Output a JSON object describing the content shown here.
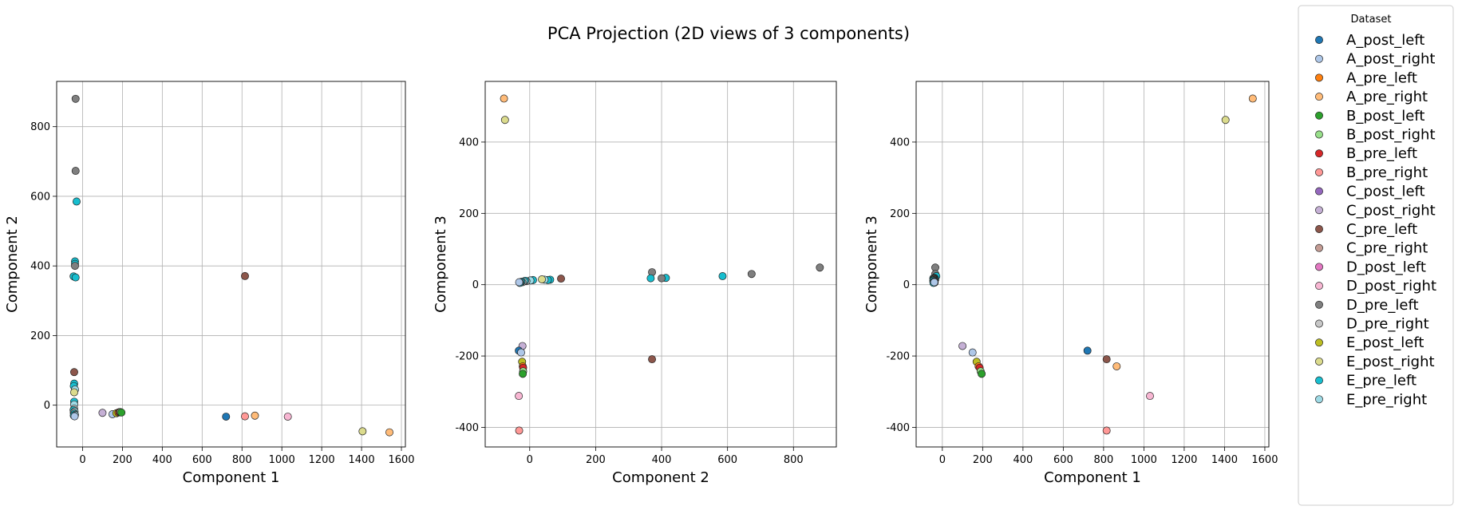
{
  "figure": {
    "suptitle": "PCA Projection (2D views of 3 components)"
  },
  "legend": {
    "title": "Dataset",
    "placement": "outside-right",
    "entries": [
      {
        "label": "A_post_left",
        "color": "#1f77b4"
      },
      {
        "label": "A_post_right",
        "color": "#aec7e8"
      },
      {
        "label": "A_pre_left",
        "color": "#ff7f0e"
      },
      {
        "label": "A_pre_right",
        "color": "#ffbb78"
      },
      {
        "label": "B_post_left",
        "color": "#2ca02c"
      },
      {
        "label": "B_post_right",
        "color": "#98df8a"
      },
      {
        "label": "B_pre_left",
        "color": "#d62728"
      },
      {
        "label": "B_pre_right",
        "color": "#ff9896"
      },
      {
        "label": "C_post_left",
        "color": "#9467bd"
      },
      {
        "label": "C_post_right",
        "color": "#c5b0d5"
      },
      {
        "label": "C_pre_left",
        "color": "#8c564b"
      },
      {
        "label": "C_pre_right",
        "color": "#c49c94"
      },
      {
        "label": "D_post_left",
        "color": "#e377c2"
      },
      {
        "label": "D_post_right",
        "color": "#f7b6d2"
      },
      {
        "label": "D_pre_left",
        "color": "#7f7f7f"
      },
      {
        "label": "D_pre_right",
        "color": "#c7c7c7"
      },
      {
        "label": "E_post_left",
        "color": "#bcbd22"
      },
      {
        "label": "E_post_right",
        "color": "#dbdb8d"
      },
      {
        "label": "E_pre_left",
        "color": "#17becf"
      },
      {
        "label": "E_pre_right",
        "color": "#9edae5"
      }
    ]
  },
  "chart_data": [
    {
      "type": "scatter",
      "xlabel": "Component 1",
      "ylabel": "Component 2",
      "xlim": [
        -130,
        1620
      ],
      "ylim": [
        -120,
        930
      ],
      "xticks": [
        0,
        200,
        400,
        600,
        800,
        1000,
        1200,
        1400,
        1600
      ],
      "yticks": [
        0,
        200,
        400,
        600,
        800
      ],
      "grid": true,
      "points": [
        {
          "series": "C_post_right",
          "x": 100,
          "y": -22
        },
        {
          "series": "A_post_right",
          "x": 150,
          "y": -26
        },
        {
          "series": "E_post_left",
          "x": 170,
          "y": -23
        },
        {
          "series": "A_pre_left",
          "x": 180,
          "y": -21
        },
        {
          "series": "B_pre_left",
          "x": 185,
          "y": -20
        },
        {
          "series": "B_post_right",
          "x": 190,
          "y": -20
        },
        {
          "series": "B_post_left",
          "x": 195,
          "y": -21
        },
        {
          "series": "A_post_left",
          "x": 720,
          "y": -33
        },
        {
          "series": "C_pre_left",
          "x": 815,
          "y": 371
        },
        {
          "series": "B_pre_right",
          "x": 815,
          "y": -32
        },
        {
          "series": "A_pre_right",
          "x": 865,
          "y": -30
        },
        {
          "series": "D_post_right",
          "x": 1030,
          "y": -33
        },
        {
          "series": "E_post_right",
          "x": 1405,
          "y": -75
        },
        {
          "series": "A_pre_right",
          "x": 1540,
          "y": -78
        },
        {
          "series": "D_pre_left",
          "x": -35,
          "y": 880
        },
        {
          "series": "D_pre_left",
          "x": -35,
          "y": 673
        },
        {
          "series": "E_pre_left",
          "x": -30,
          "y": 585
        },
        {
          "series": "E_pre_left",
          "x": -38,
          "y": 413
        },
        {
          "series": "E_pre_left",
          "x": -38,
          "y": 406
        },
        {
          "series": "D_pre_left",
          "x": -38,
          "y": 400
        },
        {
          "series": "E_pre_left",
          "x": -45,
          "y": 370
        },
        {
          "series": "E_pre_left",
          "x": -35,
          "y": 367
        },
        {
          "series": "C_pre_left",
          "x": -42,
          "y": 95
        },
        {
          "series": "E_pre_left",
          "x": -42,
          "y": 62
        },
        {
          "series": "E_pre_left",
          "x": -44,
          "y": 55
        },
        {
          "series": "E_pre_right",
          "x": -38,
          "y": 45
        },
        {
          "series": "E_post_right",
          "x": -42,
          "y": 37
        },
        {
          "series": "E_pre_left",
          "x": -42,
          "y": 10
        },
        {
          "series": "E_pre_right",
          "x": -42,
          "y": 2
        },
        {
          "series": "D_pre_right",
          "x": -42,
          "y": -10
        },
        {
          "series": "E_pre_left",
          "x": -45,
          "y": -14
        },
        {
          "series": "E_pre_right",
          "x": -40,
          "y": -18
        },
        {
          "series": "D_pre_right",
          "x": -44,
          "y": -22
        },
        {
          "series": "E_pre_left",
          "x": -42,
          "y": -25
        },
        {
          "series": "E_pre_right",
          "x": -38,
          "y": -28
        },
        {
          "series": "E_pre_left",
          "x": -44,
          "y": -30
        },
        {
          "series": "A_post_right",
          "x": -40,
          "y": -32
        }
      ]
    },
    {
      "type": "scatter",
      "xlabel": "Component 2",
      "ylabel": "Component 3",
      "xlim": [
        -135,
        930
      ],
      "ylim": [
        -455,
        570
      ],
      "xticks": [
        0,
        200,
        400,
        600,
        800
      ],
      "yticks": [
        -400,
        -200,
        0,
        200,
        400
      ],
      "grid": true,
      "points": [
        {
          "series": "A_pre_right",
          "x": -78,
          "y": 522
        },
        {
          "series": "E_post_right",
          "x": -75,
          "y": 462
        },
        {
          "series": "D_pre_left",
          "x": 880,
          "y": 48
        },
        {
          "series": "D_pre_left",
          "x": 673,
          "y": 30
        },
        {
          "series": "E_pre_left",
          "x": 585,
          "y": 24
        },
        {
          "series": "E_pre_left",
          "x": 413,
          "y": 19
        },
        {
          "series": "D_pre_left",
          "x": 400,
          "y": 18
        },
        {
          "series": "D_pre_left",
          "x": 371,
          "y": 35
        },
        {
          "series": "E_pre_left",
          "x": 367,
          "y": 18
        },
        {
          "series": "C_pre_left",
          "x": 371,
          "y": -209
        },
        {
          "series": "C_pre_left",
          "x": 95,
          "y": 17
        },
        {
          "series": "E_pre_left",
          "x": 62,
          "y": 14
        },
        {
          "series": "E_pre_left",
          "x": 55,
          "y": 13
        },
        {
          "series": "E_pre_right",
          "x": 45,
          "y": 14
        },
        {
          "series": "E_post_right",
          "x": 37,
          "y": 15
        },
        {
          "series": "E_pre_left",
          "x": 10,
          "y": 13
        },
        {
          "series": "E_pre_right",
          "x": 2,
          "y": 12
        },
        {
          "series": "D_pre_right",
          "x": -10,
          "y": 10
        },
        {
          "series": "E_pre_left",
          "x": -14,
          "y": 11
        },
        {
          "series": "E_pre_right",
          "x": -18,
          "y": 9
        },
        {
          "series": "D_pre_right",
          "x": -22,
          "y": 7
        },
        {
          "series": "E_pre_left",
          "x": -25,
          "y": 8
        },
        {
          "series": "E_pre_right",
          "x": -28,
          "y": 6
        },
        {
          "series": "E_pre_left",
          "x": -30,
          "y": 5
        },
        {
          "series": "A_post_right",
          "x": -32,
          "y": 7
        },
        {
          "series": "C_post_right",
          "x": -22,
          "y": -172
        },
        {
          "series": "A_post_left",
          "x": -33,
          "y": -185
        },
        {
          "series": "A_post_right",
          "x": -26,
          "y": -190
        },
        {
          "series": "E_post_left",
          "x": -23,
          "y": -216
        },
        {
          "series": "A_pre_left",
          "x": -21,
          "y": -229
        },
        {
          "series": "B_pre_left",
          "x": -20,
          "y": -233
        },
        {
          "series": "B_post_right",
          "x": -20,
          "y": -243
        },
        {
          "series": "B_post_left",
          "x": -21,
          "y": -250
        },
        {
          "series": "D_post_right",
          "x": -33,
          "y": -312
        },
        {
          "series": "B_pre_right",
          "x": -32,
          "y": -409
        }
      ]
    },
    {
      "type": "scatter",
      "xlabel": "Component 1",
      "ylabel": "Component 3",
      "xlim": [
        -130,
        1620
      ],
      "ylim": [
        -455,
        570
      ],
      "xticks": [
        0,
        200,
        400,
        600,
        800,
        1000,
        1200,
        1400,
        1600
      ],
      "yticks": [
        -400,
        -200,
        0,
        200,
        400
      ],
      "grid": true,
      "points": [
        {
          "series": "A_pre_right",
          "x": 1540,
          "y": 522
        },
        {
          "series": "E_post_right",
          "x": 1405,
          "y": 462
        },
        {
          "series": "D_pre_left",
          "x": -35,
          "y": 48
        },
        {
          "series": "D_pre_left",
          "x": -35,
          "y": 30
        },
        {
          "series": "E_pre_left",
          "x": -30,
          "y": 24
        },
        {
          "series": "E_pre_left",
          "x": -38,
          "y": 19
        },
        {
          "series": "D_pre_left",
          "x": -38,
          "y": 18
        },
        {
          "series": "E_pre_left",
          "x": -45,
          "y": 18
        },
        {
          "series": "E_pre_left",
          "x": -35,
          "y": 15
        },
        {
          "series": "C_pre_left",
          "x": -42,
          "y": 17
        },
        {
          "series": "E_pre_left",
          "x": -42,
          "y": 14
        },
        {
          "series": "E_pre_right",
          "x": -38,
          "y": 14
        },
        {
          "series": "E_post_right",
          "x": -42,
          "y": 15
        },
        {
          "series": "E_pre_left",
          "x": -42,
          "y": 13
        },
        {
          "series": "E_pre_right",
          "x": -42,
          "y": 12
        },
        {
          "series": "D_pre_right",
          "x": -42,
          "y": 10
        },
        {
          "series": "E_pre_left",
          "x": -45,
          "y": 11
        },
        {
          "series": "E_pre_right",
          "x": -40,
          "y": 9
        },
        {
          "series": "D_pre_right",
          "x": -44,
          "y": 7
        },
        {
          "series": "E_pre_left",
          "x": -42,
          "y": 8
        },
        {
          "series": "E_pre_right",
          "x": -38,
          "y": 6
        },
        {
          "series": "E_pre_left",
          "x": -44,
          "y": 5
        },
        {
          "series": "A_post_right",
          "x": -40,
          "y": 7
        },
        {
          "series": "C_post_right",
          "x": 100,
          "y": -172
        },
        {
          "series": "A_post_right",
          "x": 150,
          "y": -190
        },
        {
          "series": "E_post_left",
          "x": 170,
          "y": -216
        },
        {
          "series": "A_pre_left",
          "x": 180,
          "y": -229
        },
        {
          "series": "B_pre_left",
          "x": 185,
          "y": -233
        },
        {
          "series": "B_post_right",
          "x": 190,
          "y": -243
        },
        {
          "series": "B_post_left",
          "x": 195,
          "y": -250
        },
        {
          "series": "A_post_left",
          "x": 720,
          "y": -185
        },
        {
          "series": "C_pre_left",
          "x": 815,
          "y": -209
        },
        {
          "series": "A_pre_right",
          "x": 865,
          "y": -229
        },
        {
          "series": "D_post_right",
          "x": 1030,
          "y": -312
        },
        {
          "series": "B_pre_right",
          "x": 815,
          "y": -409
        }
      ]
    }
  ]
}
